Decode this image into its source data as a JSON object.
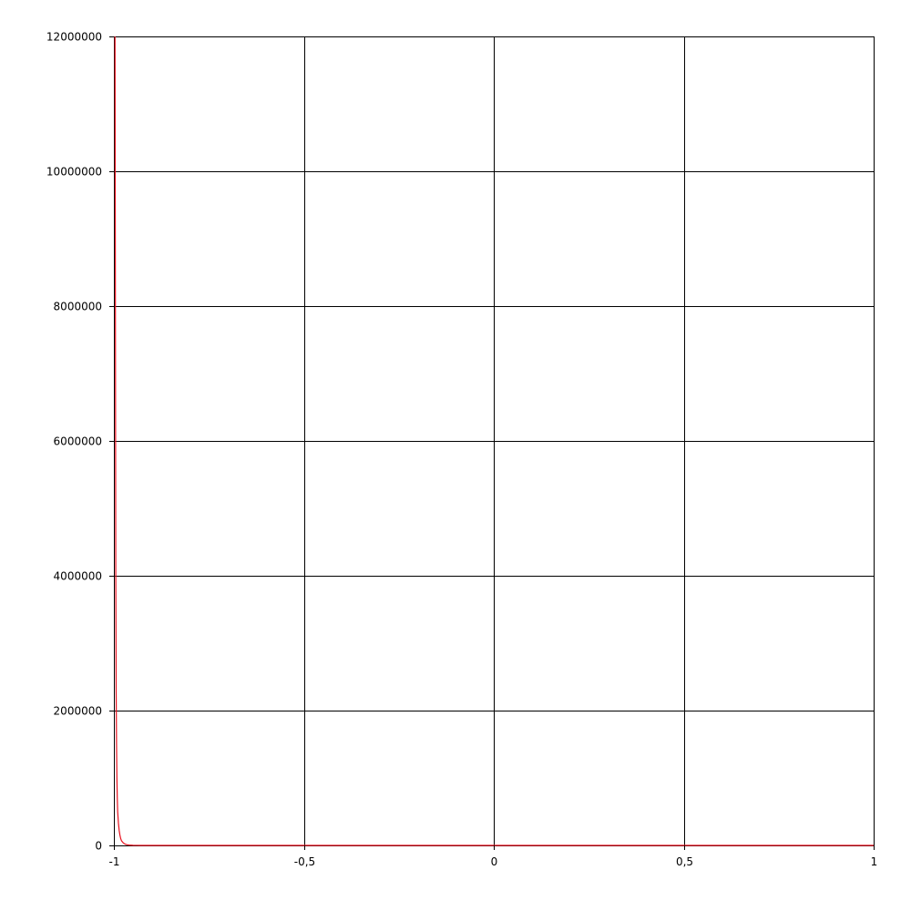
{
  "chart_data": {
    "type": "line",
    "title": "",
    "xlabel": "",
    "ylabel": "",
    "xlim": [
      -1,
      1
    ],
    "ylim": [
      0,
      12000000
    ],
    "grid": true,
    "x_ticks": [
      {
        "value": -1,
        "label": "-1"
      },
      {
        "value": -0.5,
        "label": "-0,5"
      },
      {
        "value": 0,
        "label": "0"
      },
      {
        "value": 0.5,
        "label": "0,5"
      },
      {
        "value": 1,
        "label": "1"
      }
    ],
    "y_ticks": [
      {
        "value": 0,
        "label": "0"
      },
      {
        "value": 2000000,
        "label": "2000000"
      },
      {
        "value": 4000000,
        "label": "4000000"
      },
      {
        "value": 6000000,
        "label": "6000000"
      },
      {
        "value": 8000000,
        "label": "8000000"
      },
      {
        "value": 10000000,
        "label": "10000000"
      },
      {
        "value": 12000000,
        "label": "12000000"
      }
    ],
    "series": [
      {
        "color": "#e8101e",
        "x": [
          -0.997,
          -0.9965,
          -0.996,
          -0.9955,
          -0.995,
          -0.994,
          -0.993,
          -0.992,
          -0.991,
          -0.99,
          -0.988,
          -0.986,
          -0.984,
          -0.982,
          -0.98,
          -0.975,
          -0.97,
          -0.965,
          -0.96,
          -0.95,
          -0.94,
          -0.93,
          -0.92,
          -0.91,
          -0.9,
          -0.85,
          -0.8,
          -0.7,
          -0.5,
          -0.25,
          0,
          0.25,
          0.5,
          0.75,
          1
        ],
        "y": [
          12000000,
          10000000,
          8000000,
          6000000,
          4000000,
          2300000,
          1500000,
          1000000,
          700000,
          500000,
          330000,
          220000,
          150000,
          100000,
          70000,
          35000,
          18000,
          9000,
          5000,
          2000,
          900,
          400,
          200,
          100,
          50,
          10,
          2,
          0,
          0,
          0,
          0,
          0,
          0,
          0,
          0
        ]
      }
    ]
  },
  "colors": {
    "background": "#ffffff",
    "grid": "#000000",
    "series": "#e8101e"
  }
}
